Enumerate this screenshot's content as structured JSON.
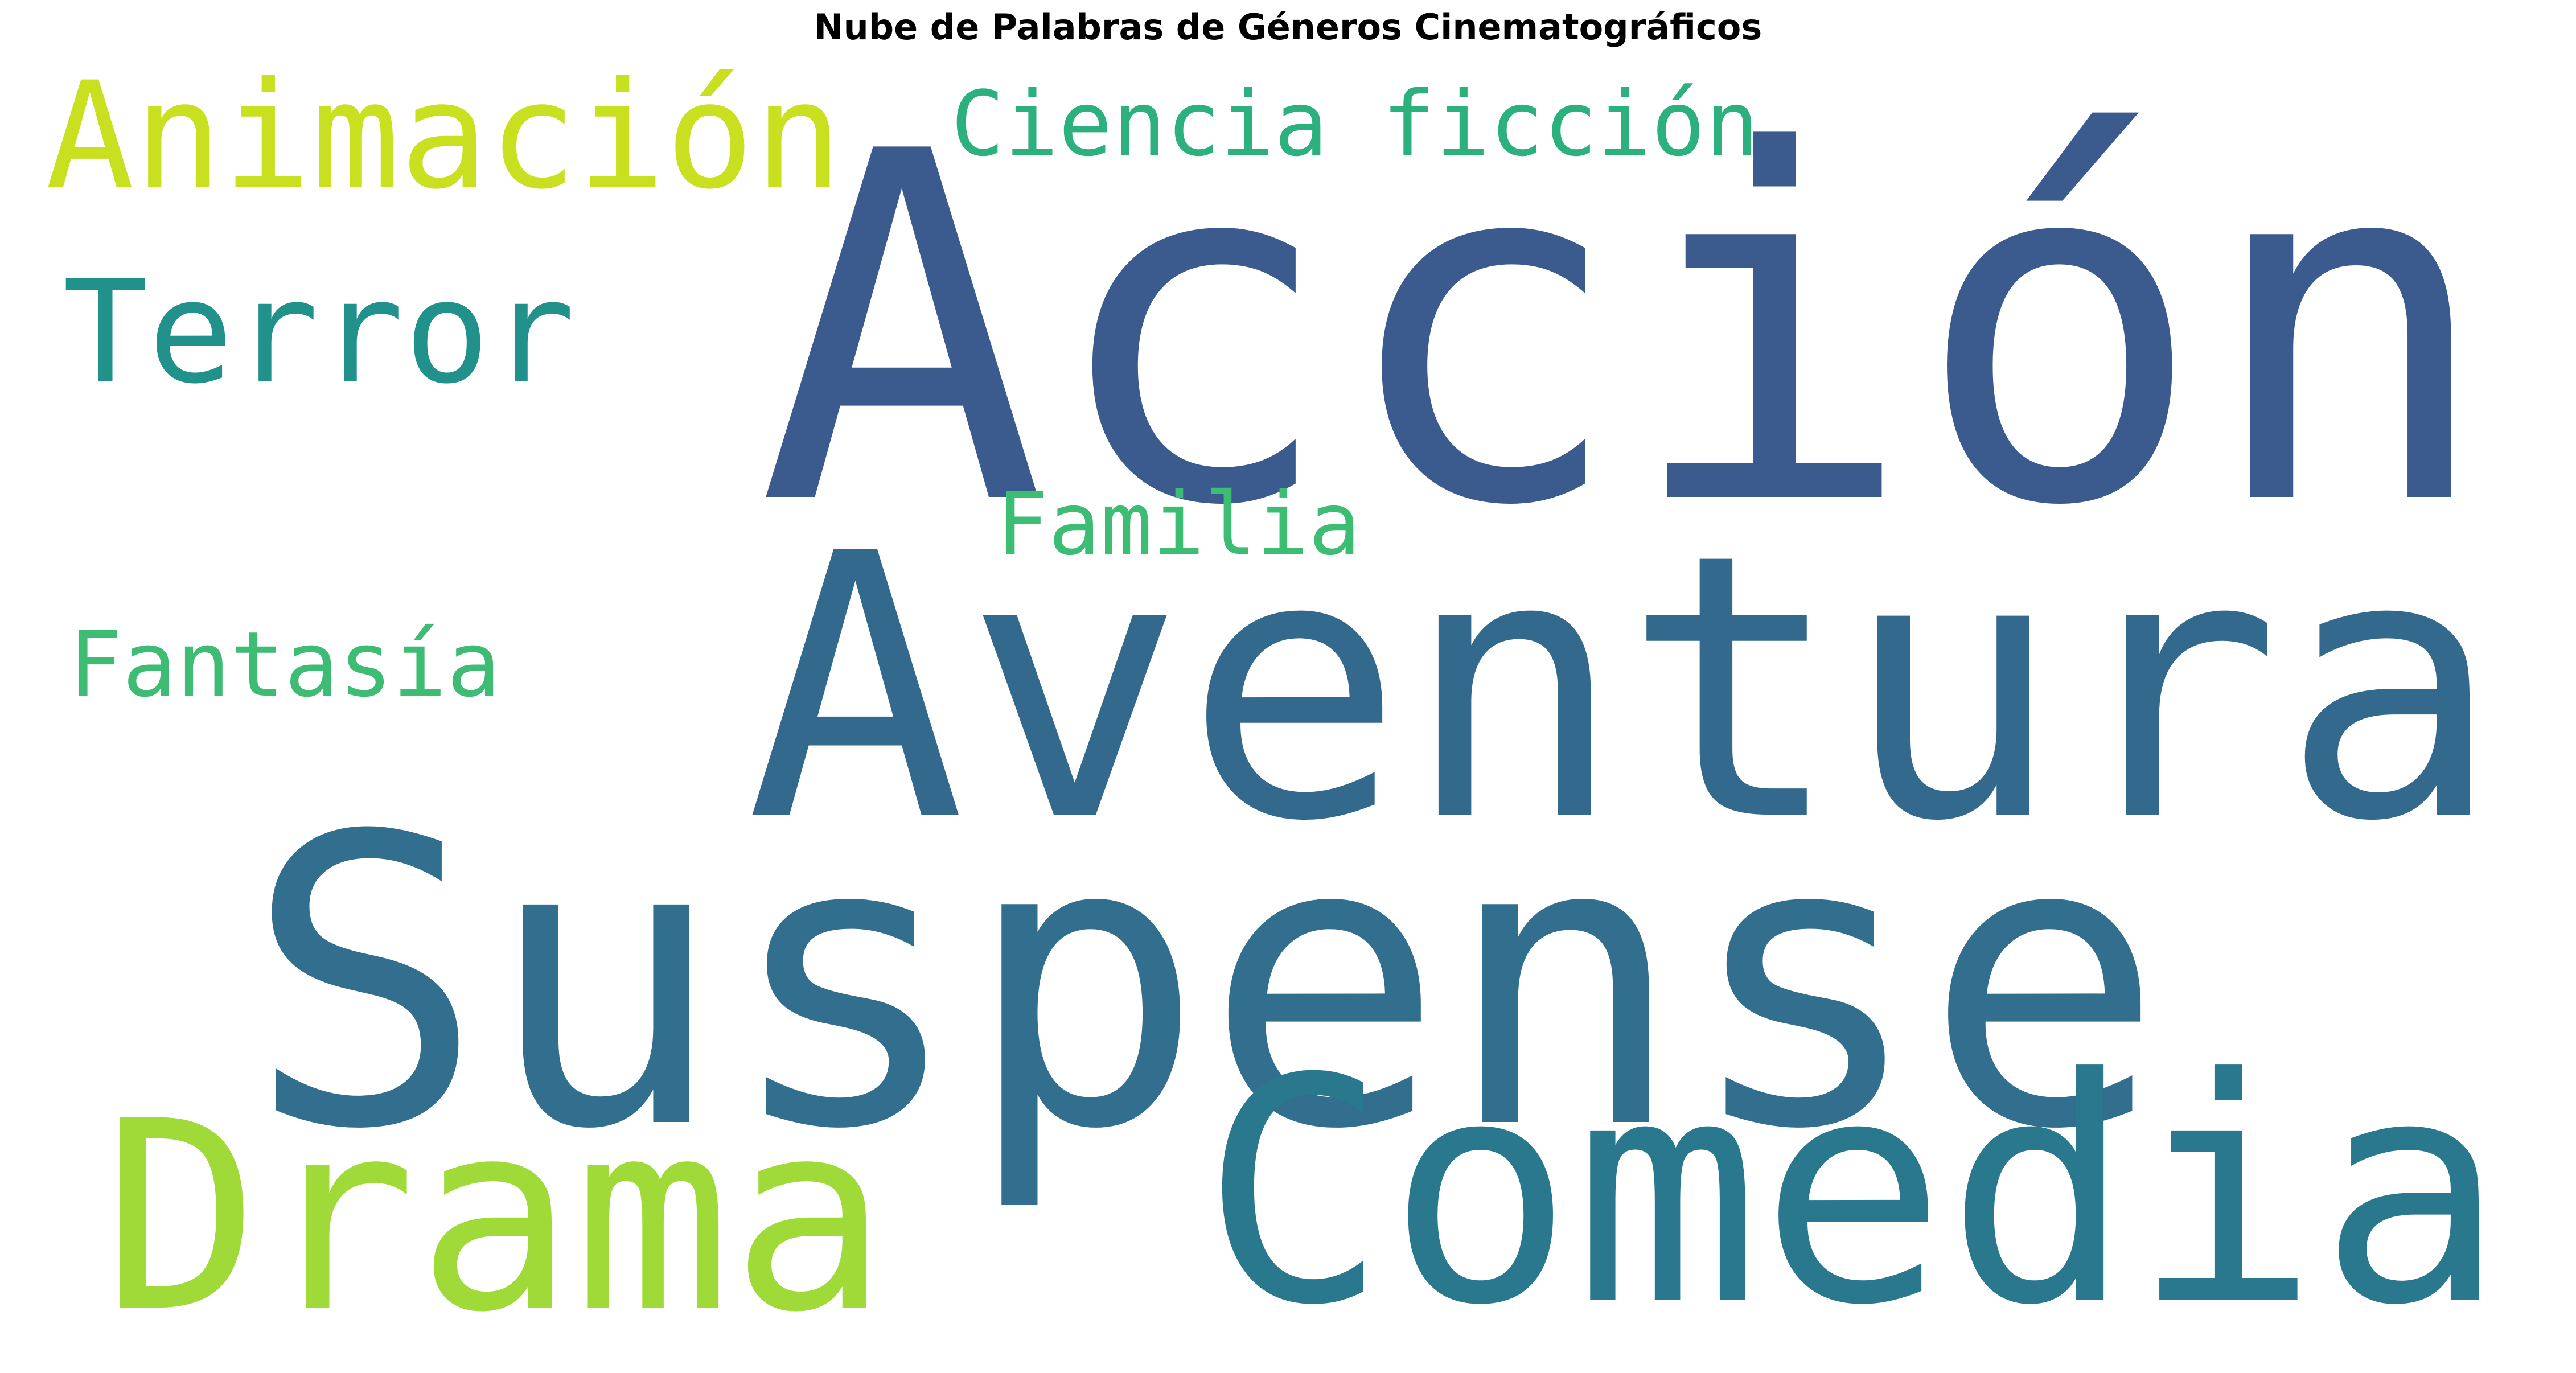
{
  "title": "Nube de Palabras de Géneros Cinematográficos",
  "words": [
    {
      "key": "accion",
      "text": "Acción",
      "color": "#3b5b8f"
    },
    {
      "key": "aventura",
      "text": "Aventura",
      "color": "#34698e"
    },
    {
      "key": "suspense",
      "text": "Suspense",
      "color": "#326e8d"
    },
    {
      "key": "comedia",
      "text": "Comedia",
      "color": "#2a788e"
    },
    {
      "key": "drama",
      "text": "Drama",
      "color": "#a0da39"
    },
    {
      "key": "animacion",
      "text": "Animación",
      "color": "#c8e020"
    },
    {
      "key": "terror",
      "text": "Terror",
      "color": "#21918c"
    },
    {
      "key": "ciencia_ficcion",
      "text": "Ciencia ficción",
      "color": "#2cb17e"
    },
    {
      "key": "familia",
      "text": "Familia",
      "color": "#3dbc74"
    },
    {
      "key": "fantasia",
      "text": "Fantasía",
      "color": "#3fbc73"
    }
  ]
}
